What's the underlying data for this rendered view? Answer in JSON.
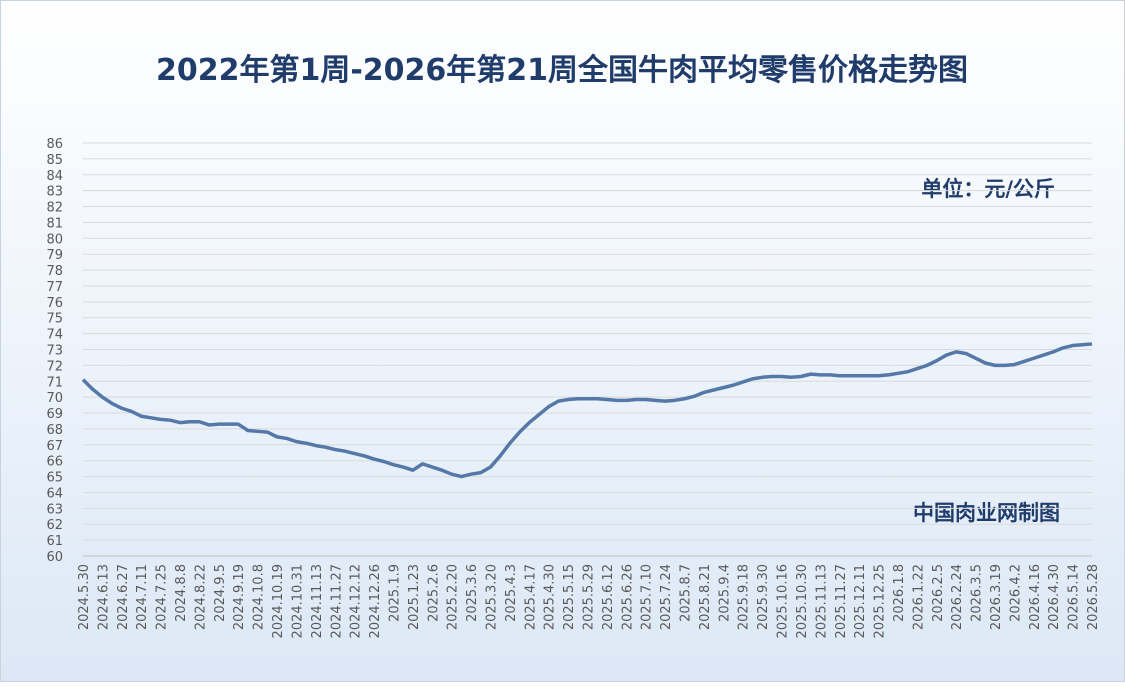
{
  "chart_data": {
    "type": "line",
    "title": "2022年第1周-2026年第21周全国牛肉平均零售价格走势图",
    "annotations": [
      "单位：元/公斤",
      "中国肉业网制图"
    ],
    "categories": [
      "2024.5.30",
      null,
      "2024.6.13",
      null,
      "2024.6.27",
      null,
      "2024.7.11",
      null,
      "2024.7.25",
      null,
      "2024.8.8",
      null,
      "2024.8.22",
      null,
      "2024.9.5",
      null,
      "2024.9.19",
      null,
      "2024.10.8",
      null,
      "2024.10.19",
      null,
      "2024.10.31",
      null,
      "2024.11.13",
      null,
      "2024.11.27",
      null,
      "2024.12.12",
      null,
      "2024.12.26",
      null,
      "2025.1.9",
      null,
      "2025.1.23",
      null,
      "2025.2.6",
      null,
      "2025.2.20",
      null,
      "2025.3.6",
      null,
      "2025.3.20",
      null,
      "2025.4.3",
      null,
      "2025.4.17",
      null,
      "2025.4.30",
      null,
      "2025.5.15",
      null,
      "2025.5.29",
      null,
      "2025.6.12",
      null,
      "2025.6.26",
      null,
      "2025.7.10",
      null,
      "2025.7.24",
      null,
      "2025.8.7",
      null,
      "2025.8.21",
      null,
      "2025.9.4",
      null,
      "2025.9.18",
      null,
      "2025.9.30",
      null,
      "2025.10.16",
      null,
      "2025.10.30",
      null,
      "2025.11.13",
      null,
      "2025.11.27",
      null,
      "2025.12.11",
      null,
      "2025.12.25",
      null,
      "2026.1.8",
      null,
      "2026.1.22",
      null,
      "2026.2.5",
      null,
      "2026.2.24",
      null,
      "2026.3.5",
      null,
      "2026.3.19",
      null,
      "2026.4.2",
      null,
      "2026.4.16",
      null,
      "2026.4.30",
      null,
      "2026.5.14",
      null,
      "2026.5.28"
    ],
    "series": [
      {
        "name": null,
        "color": "#5479a8",
        "values": [
          71.1,
          70.5,
          70.0,
          69.6,
          69.3,
          69.1,
          68.8,
          68.7,
          68.6,
          68.55,
          68.4,
          68.45,
          68.45,
          68.25,
          68.3,
          68.3,
          68.3,
          67.9,
          67.85,
          67.8,
          67.5,
          67.4,
          67.2,
          67.1,
          66.95,
          66.85,
          66.7,
          66.6,
          66.45,
          66.3,
          66.1,
          65.95,
          65.75,
          65.6,
          65.4,
          65.8,
          65.6,
          65.4,
          65.15,
          65.0,
          65.15,
          65.25,
          65.6,
          66.3,
          67.1,
          67.8,
          68.4,
          68.9,
          69.4,
          69.75,
          69.85,
          69.9,
          69.9,
          69.9,
          69.85,
          69.8,
          69.8,
          69.85,
          69.85,
          69.8,
          69.75,
          69.8,
          69.9,
          70.05,
          70.3,
          70.45,
          70.6,
          70.75,
          70.95,
          71.15,
          71.25,
          71.3,
          71.3,
          71.25,
          71.3,
          71.45,
          71.4,
          71.4,
          71.35,
          71.35,
          71.35,
          71.35,
          71.35,
          71.4,
          71.5,
          71.6,
          71.8,
          72.0,
          72.3,
          72.65,
          72.85,
          72.75,
          72.45,
          72.15,
          72.0,
          72.0,
          72.05,
          72.25,
          72.45,
          72.65,
          72.85,
          73.1,
          73.25,
          73.3,
          73.35
        ]
      }
    ],
    "ylim": [
      60,
      86
    ],
    "yticks": [
      60,
      61,
      62,
      63,
      64,
      65,
      66,
      67,
      68,
      69,
      70,
      71,
      72,
      73,
      74,
      75,
      76,
      77,
      78,
      79,
      80,
      81,
      82,
      83,
      84,
      85,
      86
    ],
    "grid": true
  }
}
